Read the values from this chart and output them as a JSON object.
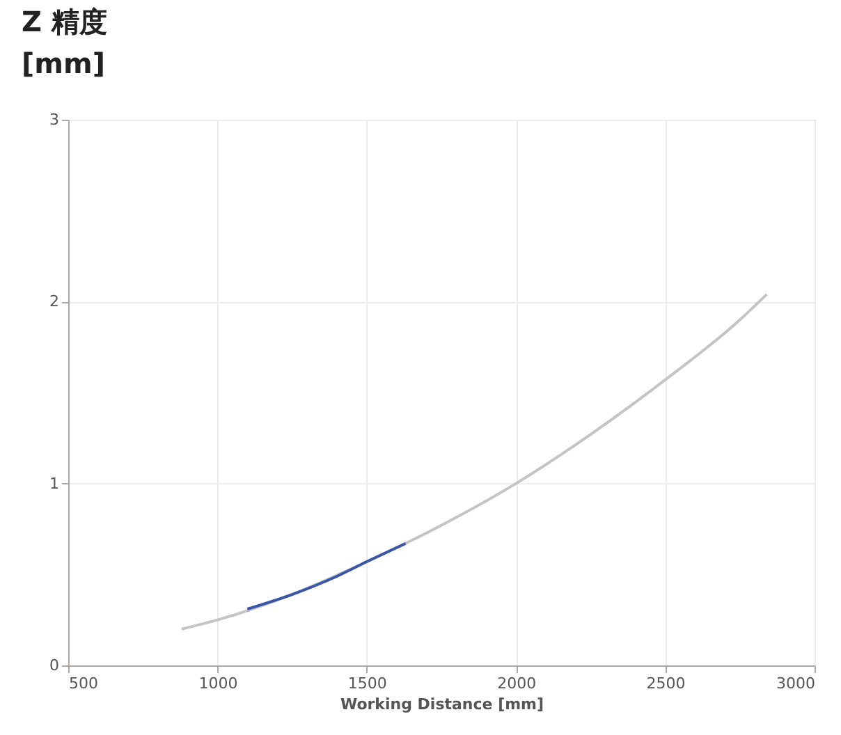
{
  "chart_data": {
    "type": "line",
    "ylabel": "Z 精度\n[mm]",
    "xlabel": "Working Distance [mm]",
    "series": [
      {
        "color": "#c4c4c4",
        "x": [
          880,
          1000,
          1250,
          1500,
          1750,
          2000,
          2250,
          2500,
          2750,
          2840
        ],
        "values": [
          0.2,
          0.25,
          0.39,
          0.57,
          0.77,
          1.0,
          1.27,
          1.57,
          1.9,
          2.04
        ]
      },
      {
        "color": "#3a55a8",
        "x": [
          1100,
          1250,
          1400,
          1500,
          1630
        ],
        "values": [
          0.31,
          0.39,
          0.49,
          0.57,
          0.67
        ]
      }
    ],
    "xlim": [
      500,
      3000
    ],
    "xticks": [
      500,
      1000,
      1500,
      2000,
      2500,
      3000
    ],
    "ylim": [
      0,
      3
    ],
    "yticks": [
      0,
      1,
      2,
      3
    ],
    "grid": true
  }
}
